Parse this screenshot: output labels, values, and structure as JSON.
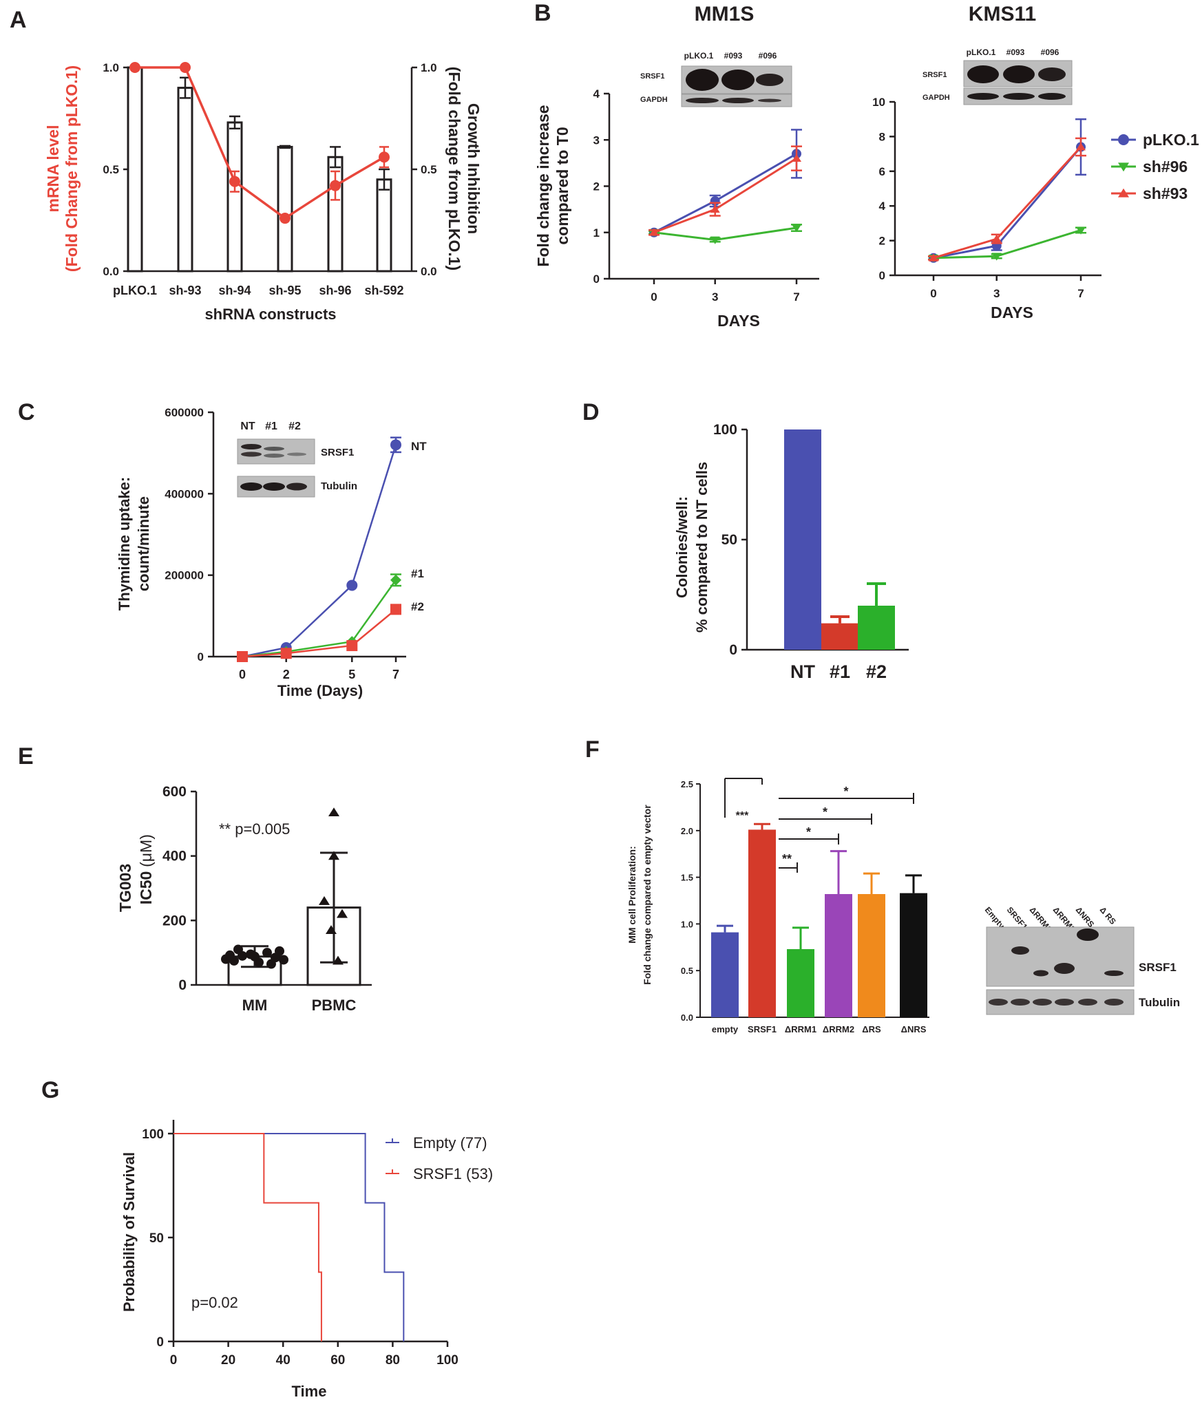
{
  "colors": {
    "red": "#e8463b",
    "blue": "#4a50b0",
    "green": "#3cb531",
    "redD": "#d43a2a",
    "greenD": "#2bb02b",
    "purple": "#9a45b8",
    "orange": "#f08a1c",
    "black": "#111111",
    "axis": "#231f20",
    "blotBg": "#bdbdbd"
  },
  "chart_data": [
    {
      "panel": "A",
      "type": "bar",
      "categories": [
        "pLKO.1",
        "sh-93",
        "sh-94",
        "sh-95",
        "sh-96",
        "sh-592"
      ],
      "series": [
        {
          "name": "Growth Inhibition (Fold change from pLKO.1)",
          "axis": "right",
          "kind": "bar",
          "values": [
            1.0,
            0.9,
            0.73,
            0.61,
            0.56,
            0.45
          ],
          "errors": [
            0,
            0.05,
            0.03,
            0.005,
            0.05,
            0.05
          ]
        },
        {
          "name": "mRNA level (Fold Change from pLKO.1)",
          "axis": "left",
          "kind": "line",
          "values": [
            1.0,
            1.0,
            0.44,
            0.26,
            0.42,
            0.56
          ],
          "errors": [
            0,
            0,
            0.05,
            0,
            0.07,
            0.05
          ]
        }
      ],
      "ylim": [
        0,
        1.0
      ],
      "yticks": [
        "0.0",
        "0.5",
        "1.0"
      ],
      "y2ticks": [
        "0.0",
        "0.5",
        "1.0"
      ],
      "ylabel_line1": "mRNA level",
      "ylabel_line2": "(Fold Change from pLKO.1)",
      "y2label_line1": "Growth Inhibition",
      "y2label_line2": "(Fold change from pLKO.1)",
      "xlabel": "shRNA constructs"
    },
    {
      "panel": "B",
      "type": "line",
      "title": "MM1S",
      "x": [
        0,
        3,
        7
      ],
      "xticks": [
        "0",
        "3",
        "7"
      ],
      "ylim": [
        0,
        4
      ],
      "yticks": [
        "0",
        "1",
        "2",
        "3",
        "4"
      ],
      "series": [
        {
          "name": "pLKO.1",
          "values": [
            1.0,
            1.68,
            2.7
          ],
          "errors": [
            0.05,
            0.12,
            0.52
          ]
        },
        {
          "name": "sh#96",
          "values": [
            1.0,
            0.84,
            1.1
          ],
          "errors": [
            0.03,
            0.04,
            0.07
          ]
        },
        {
          "name": "sh#93",
          "values": [
            1.0,
            1.5,
            2.6
          ],
          "errors": [
            0.05,
            0.14,
            0.26
          ]
        }
      ],
      "ylabel_line1": "Fold change increase",
      "ylabel_line2": "compared to T0",
      "xlabel": "DAYS",
      "blot_lanes": [
        "pLKO.1",
        "#093",
        "#096"
      ],
      "blot_rows": [
        "SRSF1",
        "GAPDH"
      ]
    },
    {
      "panel": "B",
      "type": "line",
      "title": "KMS11",
      "x": [
        0,
        3,
        7
      ],
      "xticks": [
        "0",
        "3",
        "7"
      ],
      "ylim": [
        0,
        10
      ],
      "yticks": [
        "0",
        "2",
        "4",
        "6",
        "8",
        "10"
      ],
      "series": [
        {
          "name": "pLKO.1",
          "values": [
            1.0,
            1.7,
            7.4
          ],
          "errors": [
            0.1,
            0.25,
            1.6
          ]
        },
        {
          "name": "sh#96",
          "values": [
            1.0,
            1.1,
            2.6
          ],
          "errors": [
            0.08,
            0.12,
            0.15
          ]
        },
        {
          "name": "sh#93",
          "values": [
            1.0,
            2.1,
            7.4
          ],
          "errors": [
            0.1,
            0.25,
            0.5
          ]
        }
      ],
      "xlabel": "DAYS",
      "legend": [
        "pLKO.1",
        "sh#96",
        "sh#93"
      ],
      "blot_lanes": [
        "pLKO.1",
        "#093",
        "#096"
      ],
      "blot_rows": [
        "SRSF1",
        "GAPDH"
      ]
    },
    {
      "panel": "C",
      "type": "line",
      "x": [
        0,
        2,
        5,
        7
      ],
      "xticks": [
        "0",
        "2",
        "5",
        "7"
      ],
      "ylim": [
        0,
        600000
      ],
      "yticks": [
        "0",
        "200000",
        "400000",
        "600000"
      ],
      "series": [
        {
          "name": "NT",
          "values": [
            0,
            22000,
            175000,
            520000
          ],
          "errors": [
            0,
            0,
            0,
            18000
          ]
        },
        {
          "name": "#1",
          "values": [
            0,
            12000,
            37000,
            188000
          ],
          "errors": [
            0,
            0,
            0,
            14000
          ]
        },
        {
          "name": "#2",
          "values": [
            0,
            8000,
            27000,
            116000
          ],
          "errors": [
            0,
            0,
            0,
            10000
          ]
        }
      ],
      "ylabel_line1": "Thymidine uptake:",
      "ylabel_line2": "count/minute",
      "xlabel": "Time (Days)",
      "blot_lanes": [
        "NT",
        "#1",
        "#2"
      ],
      "blot_rows": [
        "SRSF1",
        "Tubulin"
      ]
    },
    {
      "panel": "D",
      "type": "bar",
      "categories": [
        "NT",
        "#1",
        "#2"
      ],
      "values": [
        100,
        12,
        20
      ],
      "errors": [
        0,
        3,
        10
      ],
      "ylim": [
        0,
        100
      ],
      "yticks": [
        "0",
        "50",
        "100"
      ],
      "ylabel_line1": "Colonies/well:",
      "ylabel_line2": "% compared to NT cells"
    },
    {
      "panel": "E",
      "type": "scatter",
      "categories": [
        "MM",
        "PBMC"
      ],
      "means": [
        88,
        240
      ],
      "sd": [
        32,
        170
      ],
      "points_MM": [
        80,
        75,
        90,
        95,
        70,
        100,
        85,
        78,
        92,
        110,
        65,
        105,
        88
      ],
      "points_PBMC": [
        535,
        400,
        260,
        220,
        170,
        75
      ],
      "ylim": [
        0,
        600
      ],
      "yticks": [
        "0",
        "200",
        "400",
        "600"
      ],
      "ylabel_line1": "TG003",
      "ylabel_line2": "IC50",
      "ylabel_unit": "(μM)",
      "annotation": "** p=0.005"
    },
    {
      "panel": "F",
      "type": "bar",
      "categories": [
        "empty",
        "SRSF1",
        "ΔRRM1",
        "ΔRRM2",
        "ΔRS",
        "ΔNRS"
      ],
      "values": [
        0.91,
        2.01,
        0.73,
        1.32,
        1.32,
        1.33
      ],
      "errors": [
        0.07,
        0.06,
        0.23,
        0.46,
        0.22,
        0.19
      ],
      "ylim": [
        0,
        2.5
      ],
      "yticks": [
        "0.0",
        "0.5",
        "1.0",
        "1.5",
        "2.0",
        "2.5"
      ],
      "ylabel_line1": "MM cell Proliferation:",
      "ylabel_line2": "Fold change compared to empty vector",
      "significance": [
        "***",
        "**",
        "*",
        "*",
        "*"
      ],
      "blot_lanes": [
        "Empty",
        "SRSF1",
        "ΔRRM1",
        "ΔRRM2",
        "ΔNRS",
        "Δ RS"
      ],
      "blot_rows": [
        "SRSF1",
        "Tubulin"
      ]
    },
    {
      "panel": "G",
      "type": "line",
      "xlim": [
        0,
        100
      ],
      "xticks": [
        "0",
        "20",
        "40",
        "60",
        "80",
        "100"
      ],
      "ylim": [
        0,
        100
      ],
      "yticks": [
        "0",
        "50",
        "100"
      ],
      "series": [
        {
          "name": "Empty (77)",
          "steps": [
            [
              0,
              100
            ],
            [
              70,
              100
            ],
            [
              70,
              66.7
            ],
            [
              77,
              66.7
            ],
            [
              77,
              33.3
            ],
            [
              84,
              33.3
            ],
            [
              84,
              0
            ]
          ]
        },
        {
          "name": "SRSF1 (53)",
          "steps": [
            [
              0,
              100
            ],
            [
              33,
              100
            ],
            [
              33,
              66.7
            ],
            [
              53,
              66.7
            ],
            [
              53,
              33.3
            ],
            [
              54,
              33.3
            ],
            [
              54,
              0
            ]
          ]
        }
      ],
      "ylabel": "Probability of Survival",
      "xlabel": "Time",
      "annotation": "p=0.02"
    }
  ],
  "panel_labels": [
    "A",
    "B",
    "C",
    "D",
    "E",
    "F",
    "G"
  ]
}
